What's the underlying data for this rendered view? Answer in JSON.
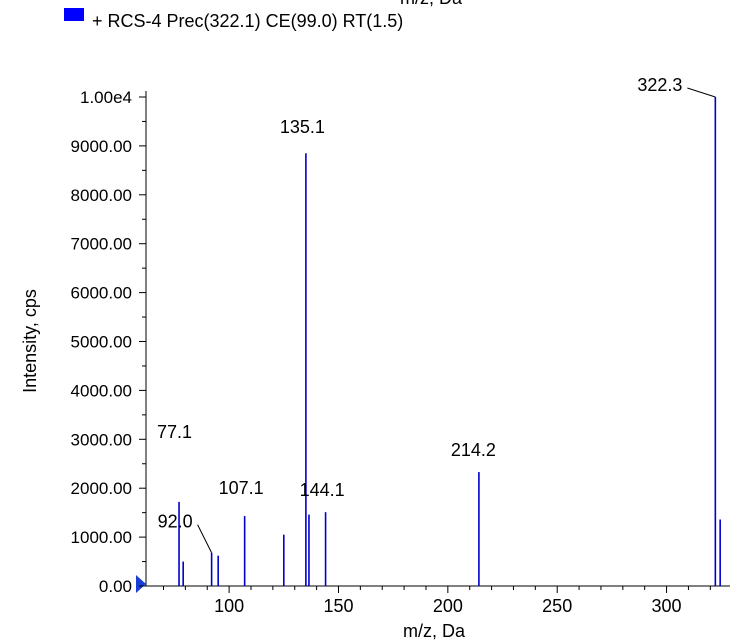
{
  "top_cut_label": "m/z, Da",
  "legend": {
    "swatch_color": "#0000ff",
    "text": "+ RCS-4 Prec(322.1) CE(99.0) RT(1.5)"
  },
  "chart_data": {
    "type": "bar",
    "xlabel": "m/z, Da",
    "ylabel": "Intensity, cps",
    "xlim": [
      62,
      329
    ],
    "ylim": [
      0,
      10000
    ],
    "x_ticks": [
      100,
      150,
      200,
      250,
      300
    ],
    "x_tick_labels": [
      "100",
      "150",
      "200",
      "250",
      "300"
    ],
    "y_ticks": [
      0,
      1000,
      2000,
      3000,
      4000,
      5000,
      6000,
      7000,
      8000,
      9000,
      10000
    ],
    "y_tick_labels": [
      "0.00",
      "1000.00",
      "2000.00",
      "3000.00",
      "4000.00",
      "5000.00",
      "6000.00",
      "7000.00",
      "8000.00",
      "9000.00",
      "1.00e4"
    ],
    "series_color": "#0000cc",
    "peaks": [
      {
        "x": 77.1,
        "y": 1720,
        "label": "77.1"
      },
      {
        "x": 79.0,
        "y": 500
      },
      {
        "x": 92.0,
        "y": 680,
        "label": "92.0"
      },
      {
        "x": 95.0,
        "y": 620
      },
      {
        "x": 107.1,
        "y": 1430,
        "label": "107.1"
      },
      {
        "x": 125.0,
        "y": 1050
      },
      {
        "x": 135.1,
        "y": 8850,
        "label": "135.1"
      },
      {
        "x": 136.5,
        "y": 1460
      },
      {
        "x": 144.1,
        "y": 1510,
        "label": "144.1"
      },
      {
        "x": 214.2,
        "y": 2330,
        "label": "214.2"
      },
      {
        "x": 322.3,
        "y": 10000,
        "label": "322.3"
      },
      {
        "x": 324.5,
        "y": 1360
      }
    ]
  }
}
